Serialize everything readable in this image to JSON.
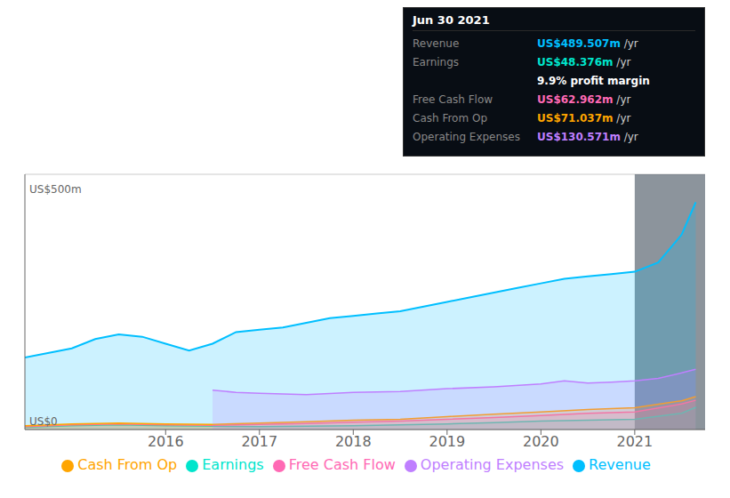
{
  "chart_data": {
    "type": "area",
    "ylabel": "US$500m",
    "annotations": [
      "US$0"
    ],
    "xlim": [
      2014.5,
      2021.75
    ],
    "xticks": [
      2016,
      2017,
      2018,
      2019,
      2020,
      2021
    ],
    "ylim": [
      0,
      550
    ],
    "yticks": [
      0,
      125,
      250,
      375,
      500
    ],
    "tick_labels": "x",
    "grid": true,
    "legend": "bottom",
    "highlight": {
      "x": [
        2021.0,
        2021.75
      ],
      "color": "#1a2a3a"
    },
    "info_box": {
      "title": "Jun 30 2021",
      "rows": [
        {
          "label": "Revenue",
          "value": "US$489.507m",
          "unit": " /yr",
          "color": "#00bfff"
        },
        {
          "label": "Earnings",
          "value": "US$48.376m",
          "unit": " /yr",
          "color": "#00e5cc"
        },
        {
          "value": "9.9% profit margin",
          "color": "#ffffff"
        },
        {
          "label": "Free Cash Flow",
          "value": "US$62.962m",
          "unit": " /yr",
          "color": "#ff69b4"
        },
        {
          "label": "Cash From Op",
          "value": "US$71.037m",
          "unit": " /yr",
          "color": "#ffa500"
        },
        {
          "label": "Operating Expenses",
          "value": "US$130.571m",
          "unit": " /yr",
          "color": "#bf7fff"
        }
      ]
    },
    "series": [
      {
        "name": "Revenue",
        "color": "#00bfff",
        "x": [
          2014.5,
          2015.0,
          2015.25,
          2015.5,
          2015.75,
          2016.0,
          2016.25,
          2016.5,
          2016.75,
          2017.0,
          2017.25,
          2017.5,
          2017.75,
          2018.0,
          2018.25,
          2018.5,
          2018.75,
          2019.0,
          2019.25,
          2019.5,
          2019.75,
          2020.0,
          2020.25,
          2020.5,
          2020.75,
          2021.0,
          2021.25,
          2021.5,
          2021.65
        ],
        "values": [
          155,
          175,
          195,
          205,
          200,
          185,
          170,
          185,
          210,
          215,
          220,
          230,
          240,
          245,
          250,
          255,
          265,
          275,
          285,
          295,
          305,
          315,
          325,
          330,
          335,
          340,
          360,
          420,
          490
        ]
      },
      {
        "name": "Earnings",
        "color": "#00e5cc",
        "x": [
          2014.5,
          2015.0,
          2015.5,
          2016.0,
          2016.5,
          2017.0,
          2017.5,
          2018.0,
          2018.5,
          2019.0,
          2019.5,
          2020.0,
          2020.5,
          2021.0,
          2021.5,
          2021.65
        ],
        "values": [
          5,
          8,
          10,
          8,
          7,
          6,
          7,
          8,
          10,
          12,
          15,
          18,
          20,
          22,
          35,
          48
        ]
      },
      {
        "name": "Free Cash Flow",
        "color": "#ff69b4",
        "x": [
          2014.5,
          2015.0,
          2015.5,
          2016.0,
          2016.5,
          2017.0,
          2017.5,
          2018.0,
          2018.5,
          2019.0,
          2019.5,
          2020.0,
          2020.5,
          2021.0,
          2021.5,
          2021.65
        ],
        "values": [
          6,
          10,
          12,
          10,
          9,
          11,
          13,
          16,
          18,
          22,
          26,
          30,
          35,
          38,
          55,
          63
        ]
      },
      {
        "name": "Cash From Op",
        "color": "#ffa500",
        "x": [
          2014.5,
          2015.0,
          2015.5,
          2016.0,
          2016.5,
          2017.0,
          2017.5,
          2018.0,
          2018.5,
          2019.0,
          2019.5,
          2020.0,
          2020.5,
          2021.0,
          2021.5,
          2021.65
        ],
        "values": [
          8,
          12,
          14,
          12,
          11,
          14,
          17,
          20,
          22,
          28,
          33,
          38,
          43,
          47,
          62,
          71
        ]
      },
      {
        "name": "Operating Expenses",
        "color": "#bf7fff",
        "x": [
          2016.5,
          2016.75,
          2017.0,
          2017.5,
          2018.0,
          2018.5,
          2019.0,
          2019.5,
          2020.0,
          2020.25,
          2020.5,
          2020.75,
          2021.0,
          2021.25,
          2021.5,
          2021.65
        ],
        "values": [
          85,
          80,
          78,
          75,
          80,
          82,
          88,
          92,
          98,
          105,
          100,
          102,
          105,
          110,
          122,
          130
        ]
      }
    ]
  }
}
